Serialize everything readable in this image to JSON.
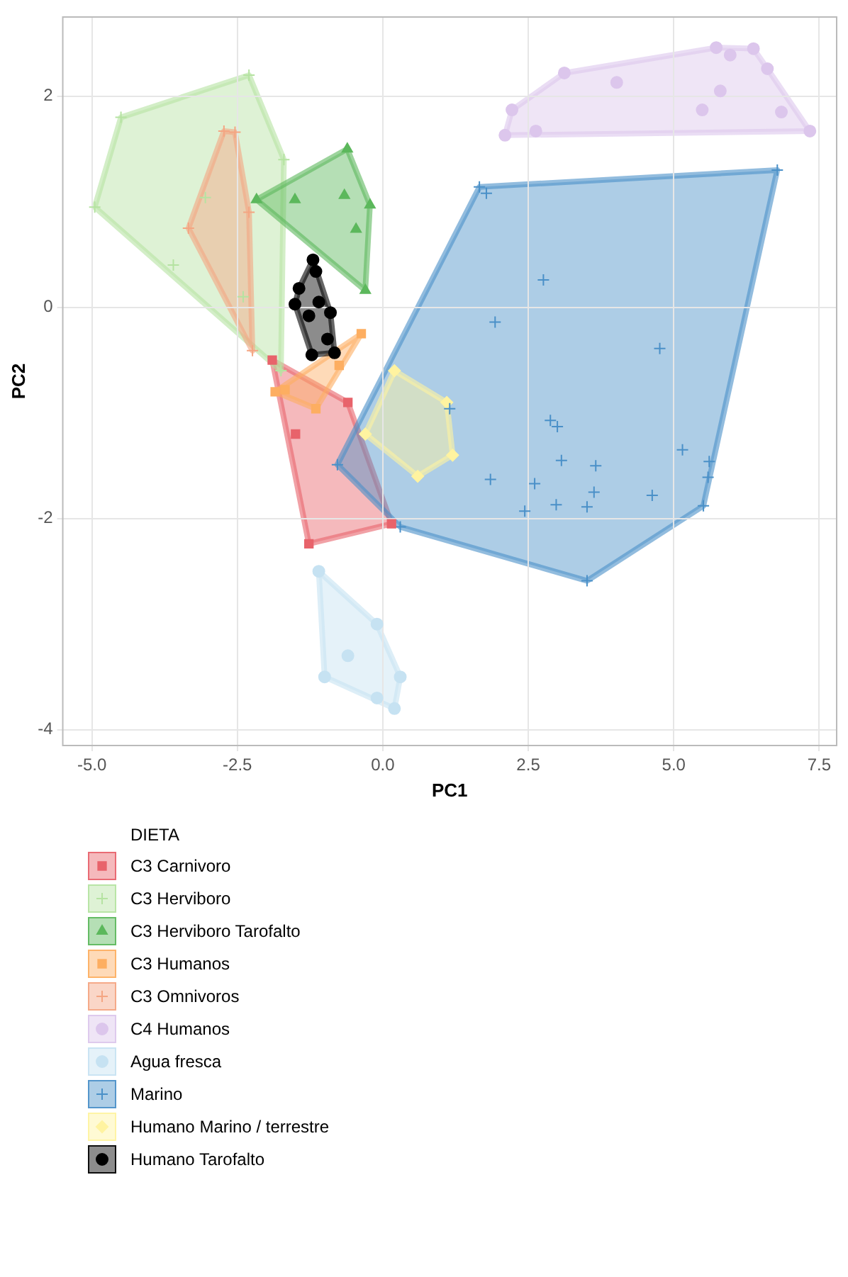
{
  "chart_data": {
    "type": "scatter",
    "xlabel": "PC1",
    "ylabel": "PC2",
    "legend_title": "DIETA",
    "legend": "bottom left",
    "grid": true,
    "xlim": [
      -5.5,
      7.8
    ],
    "ylim": [
      -4.15,
      2.75
    ],
    "xticks": [
      {
        "value": -5,
        "label": "-5.0"
      },
      {
        "value": -2.5,
        "label": "-2.5"
      },
      {
        "value": 0,
        "label": "0.0"
      },
      {
        "value": 2.5,
        "label": "2.5"
      },
      {
        "value": 5,
        "label": "5.0"
      },
      {
        "value": 7.5,
        "label": "7.5"
      }
    ],
    "yticks": [
      -4,
      -2,
      0,
      2
    ],
    "series": [
      {
        "name": "C3 Carnivoro",
        "color": "#e8636b",
        "marker": "square",
        "x": [
          -1.9,
          -1.27,
          0.15,
          -0.6,
          -1.5
        ],
        "values": [
          -0.5,
          -2.24,
          -2.05,
          -0.9,
          -1.2
        ]
      },
      {
        "name": "C3 Herviboro",
        "color": "#b5e3a1",
        "marker": "cross",
        "x": [
          -4.95,
          -4.5,
          -2.3,
          -1.7,
          -3.05,
          -3.6,
          -1.75,
          -2.4
        ],
        "values": [
          0.95,
          1.8,
          2.2,
          1.4,
          1.04,
          0.4,
          -0.6,
          0.1
        ]
      },
      {
        "name": "C3 Herviboro Tarofalto",
        "color": "#5cb85c",
        "marker": "triangle",
        "x": [
          -0.61,
          -0.66,
          -0.22,
          -0.46,
          -0.3,
          -1.51,
          -2.17
        ],
        "values": [
          1.5,
          1.06,
          0.97,
          0.74,
          0.16,
          1.02,
          1.02
        ]
      },
      {
        "name": "C3 Humanos",
        "color": "#fdae61",
        "marker": "square",
        "x": [
          -0.37,
          -1.68,
          -1.85,
          -1.15,
          -0.75
        ],
        "values": [
          -0.25,
          -0.78,
          -0.8,
          -0.96,
          -0.55
        ]
      },
      {
        "name": "C3 Omnivoros",
        "color": "#f4a582",
        "marker": "cross",
        "x": [
          -2.73,
          -2.54,
          -3.34,
          -2.24,
          -2.3
        ],
        "values": [
          1.67,
          1.66,
          0.75,
          -0.41,
          0.9
        ]
      },
      {
        "name": "C4 Humanos",
        "color": "#dcc6ec",
        "marker": "circle",
        "x": [
          3.12,
          4.02,
          2.22,
          2.63,
          2.1,
          5.73,
          5.97,
          6.37,
          6.61,
          5.8,
          5.49,
          6.85,
          7.34
        ],
        "values": [
          2.22,
          2.13,
          1.87,
          1.67,
          1.63,
          2.46,
          2.39,
          2.45,
          2.26,
          2.05,
          1.87,
          1.85,
          1.67
        ]
      },
      {
        "name": "Agua fresca",
        "color": "#c6e2f2",
        "marker": "circle",
        "x": [
          -1.1,
          -0.1,
          0.3,
          0.2,
          -1.0,
          -0.6,
          -0.1
        ],
        "values": [
          -2.5,
          -3.0,
          -3.5,
          -3.8,
          -3.5,
          -3.3,
          -3.7
        ]
      },
      {
        "name": "Marino",
        "color": "#4a90c8",
        "marker": "cross",
        "x": [
          1.66,
          1.78,
          6.78,
          2.76,
          1.93,
          4.76,
          1.15,
          2.88,
          3.0,
          3.07,
          3.66,
          1.85,
          2.61,
          3.63,
          2.98,
          2.44,
          3.51,
          4.63,
          5.15,
          5.61,
          5.59,
          5.51,
          3.51,
          -0.78,
          0.3
        ],
        "values": [
          1.14,
          1.08,
          1.3,
          0.26,
          -0.14,
          -0.39,
          -0.96,
          -1.07,
          -1.13,
          -1.45,
          -1.5,
          -1.63,
          -1.67,
          -1.75,
          -1.87,
          -1.93,
          -1.89,
          -1.78,
          -1.35,
          -1.46,
          -1.61,
          -1.88,
          -2.59,
          -1.49,
          -2.08
        ]
      },
      {
        "name": "Humano Marino / terrestre",
        "color": "#fff3a0",
        "marker": "diamond",
        "x": [
          0.2,
          1.1,
          1.2,
          0.6,
          -0.3
        ],
        "values": [
          -0.6,
          -0.9,
          -1.4,
          -1.6,
          -1.2
        ]
      },
      {
        "name": "Humano Tarofalto",
        "color": "#000000",
        "marker": "circle",
        "x": [
          -1.2,
          -1.15,
          -1.44,
          -1.51,
          -1.27,
          -0.9,
          -0.95,
          -0.83,
          -1.22,
          -1.1
        ],
        "values": [
          0.45,
          0.34,
          0.18,
          0.03,
          -0.08,
          -0.05,
          -0.3,
          -0.43,
          -0.45,
          0.05
        ]
      }
    ]
  }
}
